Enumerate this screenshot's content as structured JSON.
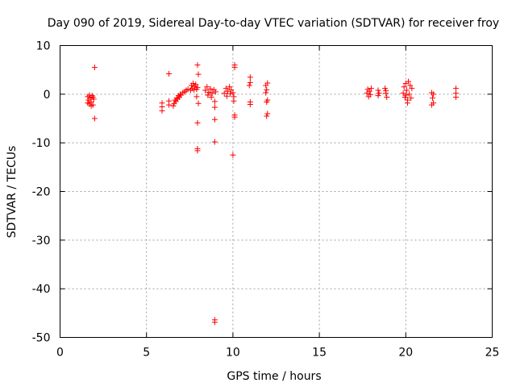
{
  "chart_data": {
    "type": "scatter",
    "title": "Day 090 of 2019, Sidereal Day-to-day VTEC variation (SDTVAR) for receiver froy",
    "xlabel": "GPS time / hours",
    "ylabel": "SDTVAR / TECUs",
    "xlim": [
      0,
      25
    ],
    "ylim": [
      -50,
      10
    ],
    "xticks": [
      0,
      5,
      10,
      15,
      20,
      25
    ],
    "yticks": [
      -50,
      -40,
      -30,
      -20,
      -10,
      0,
      10
    ],
    "grid": true,
    "marker": "plus",
    "color": "#ff0000",
    "series": [
      {
        "name": "SDTVAR",
        "points": [
          [
            1.6,
            -0.5
          ],
          [
            1.65,
            -1.2
          ],
          [
            1.7,
            -2.0
          ],
          [
            1.75,
            -0.8
          ],
          [
            1.8,
            -1.6
          ],
          [
            1.85,
            -0.3
          ],
          [
            1.9,
            -2.2
          ],
          [
            1.95,
            -1.0
          ],
          [
            1.6,
            -1.8
          ],
          [
            1.7,
            -0.2
          ],
          [
            1.8,
            -2.4
          ],
          [
            1.9,
            -0.6
          ],
          [
            2.0,
            5.5
          ],
          [
            2.0,
            -5.0
          ],
          [
            5.9,
            -1.8
          ],
          [
            5.9,
            -2.6
          ],
          [
            5.9,
            -3.4
          ],
          [
            6.3,
            -1.4
          ],
          [
            6.3,
            -2.2
          ],
          [
            6.3,
            4.2
          ],
          [
            6.55,
            -2.4
          ],
          [
            6.6,
            -1.9
          ],
          [
            6.7,
            -1.5
          ],
          [
            6.8,
            -1.0
          ],
          [
            6.9,
            -0.6
          ],
          [
            7.0,
            -0.2
          ],
          [
            6.65,
            -1.2
          ],
          [
            6.75,
            -0.8
          ],
          [
            6.85,
            -0.3
          ],
          [
            6.95,
            0.0
          ],
          [
            7.1,
            0.3
          ],
          [
            7.2,
            0.5
          ],
          [
            7.3,
            0.8
          ],
          [
            7.4,
            1.0
          ],
          [
            7.55,
            0.8
          ],
          [
            7.6,
            1.8
          ],
          [
            7.65,
            1.2
          ],
          [
            7.7,
            2.2
          ],
          [
            7.75,
            0.9
          ],
          [
            7.8,
            1.6
          ],
          [
            7.85,
            2.0
          ],
          [
            7.9,
            1.0
          ],
          [
            7.95,
            1.4
          ],
          [
            7.95,
            6.0
          ],
          [
            8.0,
            4.1
          ],
          [
            7.9,
            -0.5
          ],
          [
            8.0,
            -1.9
          ],
          [
            7.95,
            -5.9
          ],
          [
            7.95,
            -11.2
          ],
          [
            7.95,
            -11.6
          ],
          [
            8.4,
            0.8
          ],
          [
            8.5,
            1.5
          ],
          [
            8.6,
            0.4
          ],
          [
            8.7,
            1.1
          ],
          [
            8.8,
            0.2
          ],
          [
            8.9,
            0.9
          ],
          [
            9.0,
            0.5
          ],
          [
            8.55,
            -0.2
          ],
          [
            8.75,
            -0.6
          ],
          [
            8.95,
            -1.5
          ],
          [
            8.95,
            -2.7
          ],
          [
            8.95,
            -5.2
          ],
          [
            8.95,
            -9.8
          ],
          [
            8.95,
            -46.4
          ],
          [
            8.95,
            -46.9
          ],
          [
            9.5,
            0.2
          ],
          [
            9.6,
            1.2
          ],
          [
            9.7,
            0.6
          ],
          [
            9.8,
            1.5
          ],
          [
            9.9,
            0.9
          ],
          [
            10.0,
            0.3
          ],
          [
            9.65,
            -0.4
          ],
          [
            9.85,
            0.1
          ],
          [
            10.1,
            6.0
          ],
          [
            10.1,
            5.5
          ],
          [
            10.05,
            -0.5
          ],
          [
            10.05,
            -1.4
          ],
          [
            10.1,
            -4.3
          ],
          [
            10.1,
            -4.7
          ],
          [
            10.0,
            -12.5
          ],
          [
            10.95,
            1.8
          ],
          [
            11.0,
            2.4
          ],
          [
            11.0,
            3.5
          ],
          [
            11.0,
            -1.6
          ],
          [
            11.0,
            -2.1
          ],
          [
            11.9,
            1.8
          ],
          [
            11.95,
            0.9
          ],
          [
            12.0,
            2.3
          ],
          [
            11.9,
            0.3
          ],
          [
            12.0,
            -1.2
          ],
          [
            11.95,
            -1.6
          ],
          [
            12.0,
            -4.0
          ],
          [
            11.95,
            -4.5
          ],
          [
            17.75,
            0.2
          ],
          [
            17.8,
            1.0
          ],
          [
            17.85,
            -0.5
          ],
          [
            17.9,
            0.6
          ],
          [
            17.95,
            -0.1
          ],
          [
            18.0,
            1.2
          ],
          [
            18.4,
            0.8
          ],
          [
            18.4,
            -0.3
          ],
          [
            18.45,
            0.2
          ],
          [
            18.8,
            1.2
          ],
          [
            18.85,
            0.2
          ],
          [
            18.9,
            -0.6
          ],
          [
            18.85,
            0.7
          ],
          [
            19.85,
            0.2
          ],
          [
            19.9,
            1.5
          ],
          [
            19.95,
            -0.6
          ],
          [
            20.0,
            2.2
          ],
          [
            20.05,
            0.8
          ],
          [
            20.1,
            -1.2
          ],
          [
            20.15,
            2.6
          ],
          [
            20.2,
            0.0
          ],
          [
            20.25,
            1.8
          ],
          [
            20.3,
            -0.8
          ],
          [
            20.35,
            1.2
          ],
          [
            20.1,
            -1.8
          ],
          [
            20.0,
            -0.2
          ],
          [
            21.5,
            0.3
          ],
          [
            21.55,
            -0.8
          ],
          [
            21.6,
            -1.8
          ],
          [
            21.5,
            -2.2
          ],
          [
            21.6,
            0.0
          ],
          [
            22.9,
            1.2
          ],
          [
            22.9,
            0.2
          ],
          [
            22.9,
            -0.6
          ]
        ]
      }
    ]
  }
}
